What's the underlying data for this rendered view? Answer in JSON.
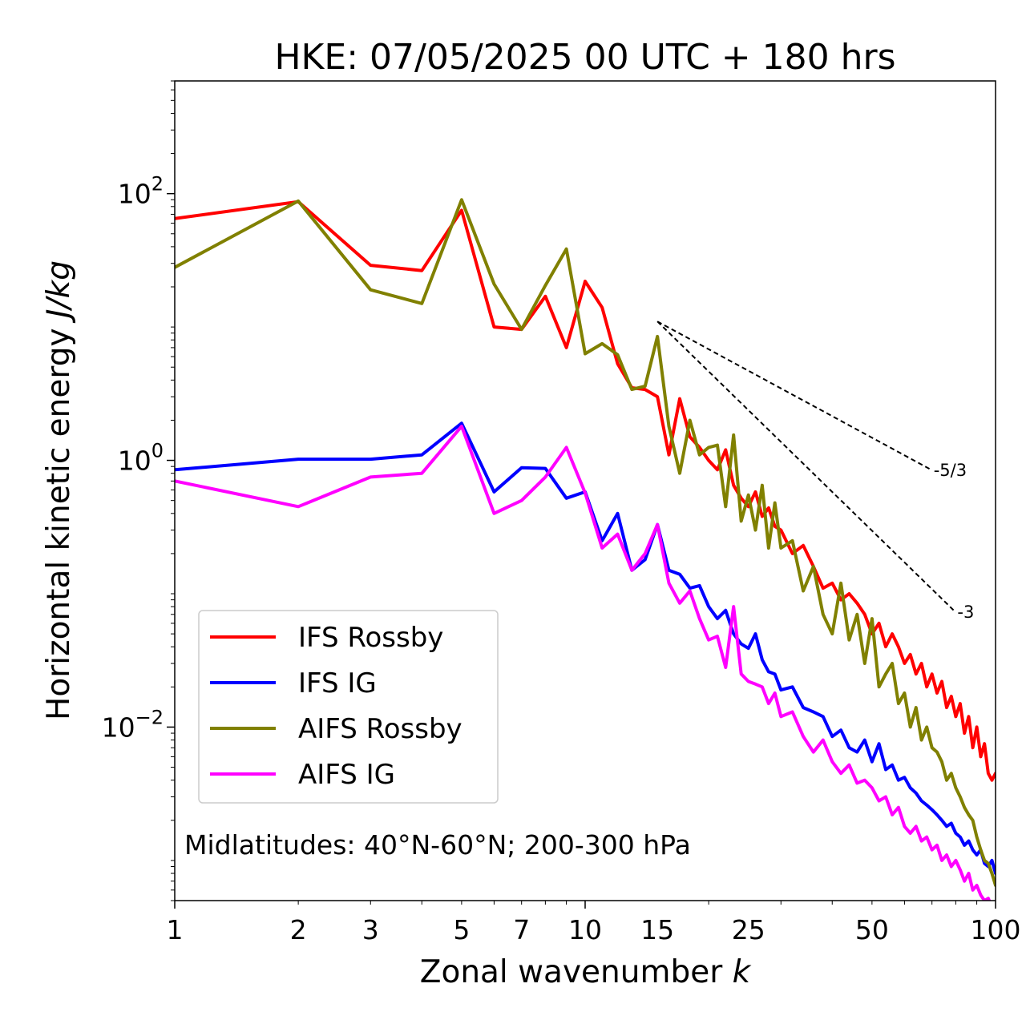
{
  "chart_data": {
    "type": "line",
    "title": "HKE: 07/05/2025 00 UTC + 180 hrs",
    "xlabel": "Zonal wavenumber",
    "xlabel_var": "k",
    "ylabel": "Horizontal kinetic energy",
    "ylabel_unit": "J/kg",
    "xscale": "log",
    "yscale": "log",
    "xlim": [
      1,
      100
    ],
    "ylim": [
      0.0005,
      700
    ],
    "xticks": [
      1,
      2,
      3,
      5,
      7,
      10,
      15,
      25,
      50,
      100
    ],
    "xtick_labels": [
      "1",
      "2",
      "3",
      "5",
      "7",
      "10",
      "15",
      "25",
      "50",
      "100"
    ],
    "yticks": [
      {
        "value": 100,
        "base": "10",
        "exp": "2"
      },
      {
        "value": 1,
        "base": "10",
        "exp": "0"
      },
      {
        "value": 0.01,
        "base": "10",
        "exp": "−2"
      }
    ],
    "grid": false,
    "legend_position": "lower-left",
    "annotation": "Midlatitudes: 40°N-60°N; 200-300 hPa",
    "reference_slopes": [
      {
        "label": "-5/3",
        "slope": -1.6667,
        "x_start": 15,
        "x_end": 70,
        "y_start": 11
      },
      {
        "label": "-3",
        "slope": -3,
        "x_start": 15,
        "x_end": 80,
        "y_start": 11
      }
    ],
    "series": [
      {
        "name": "IFS Rossby",
        "color": "#ff0000",
        "x": [
          1,
          2,
          3,
          4,
          5,
          6,
          7,
          8,
          9,
          10,
          11,
          12,
          13,
          14,
          15,
          16,
          17,
          18,
          19,
          20,
          21,
          22,
          23,
          24,
          25,
          26,
          27,
          28,
          29,
          30,
          32,
          34,
          36,
          38,
          40,
          42,
          44,
          46,
          48,
          50,
          52,
          54,
          56,
          58,
          60,
          62,
          64,
          66,
          68,
          70,
          72,
          74,
          76,
          78,
          80,
          82,
          84,
          86,
          88,
          90,
          92,
          94,
          96,
          98,
          100
        ],
        "values": [
          65,
          87,
          29,
          26.5,
          75,
          10,
          9.6,
          17,
          7,
          22,
          14,
          5.3,
          3.5,
          3.4,
          3.0,
          1.1,
          2.9,
          1.5,
          1.25,
          1.0,
          0.85,
          1.2,
          0.65,
          0.52,
          0.45,
          0.58,
          0.38,
          0.44,
          0.32,
          0.3,
          0.2,
          0.23,
          0.16,
          0.11,
          0.12,
          0.09,
          0.1,
          0.085,
          0.07,
          0.05,
          0.06,
          0.04,
          0.05,
          0.04,
          0.03,
          0.035,
          0.025,
          0.03,
          0.02,
          0.025,
          0.018,
          0.022,
          0.014,
          0.017,
          0.012,
          0.015,
          0.009,
          0.012,
          0.007,
          0.01,
          0.006,
          0.0075,
          0.0045,
          0.004,
          0.0045
        ]
      },
      {
        "name": "IFS IG",
        "color": "#0000ff",
        "x": [
          1,
          2,
          3,
          4,
          5,
          6,
          7,
          8,
          9,
          10,
          11,
          12,
          13,
          14,
          15,
          16,
          17,
          18,
          19,
          20,
          21,
          22,
          23,
          24,
          25,
          26,
          27,
          28,
          29,
          30,
          32,
          34,
          36,
          38,
          40,
          42,
          44,
          46,
          48,
          50,
          52,
          54,
          56,
          58,
          60,
          62,
          64,
          66,
          68,
          70,
          72,
          74,
          76,
          78,
          80,
          82,
          84,
          86,
          88,
          90,
          92,
          94,
          96,
          98,
          100
        ],
        "values": [
          0.85,
          1.02,
          1.02,
          1.1,
          1.9,
          0.58,
          0.88,
          0.87,
          0.52,
          0.58,
          0.25,
          0.4,
          0.15,
          0.18,
          0.33,
          0.15,
          0.14,
          0.11,
          0.115,
          0.08,
          0.065,
          0.075,
          0.05,
          0.042,
          0.039,
          0.05,
          0.032,
          0.026,
          0.025,
          0.019,
          0.02,
          0.014,
          0.013,
          0.012,
          0.0085,
          0.0095,
          0.007,
          0.0065,
          0.008,
          0.0055,
          0.0075,
          0.0048,
          0.0052,
          0.004,
          0.0042,
          0.0035,
          0.0032,
          0.0028,
          0.0026,
          0.0024,
          0.0022,
          0.002,
          0.0018,
          0.0019,
          0.0016,
          0.0015,
          0.0013,
          0.0014,
          0.0012,
          0.0011,
          0.0012,
          0.00095,
          0.0009,
          0.001,
          0.0008
        ]
      },
      {
        "name": "AIFS Rossby",
        "color": "#808000",
        "x": [
          1,
          2,
          3,
          4,
          5,
          6,
          7,
          8,
          9,
          10,
          11,
          12,
          13,
          14,
          15,
          16,
          17,
          18,
          19,
          20,
          21,
          22,
          23,
          24,
          25,
          26,
          27,
          28,
          29,
          30,
          32,
          34,
          36,
          38,
          40,
          42,
          44,
          46,
          48,
          50,
          52,
          54,
          56,
          58,
          60,
          62,
          64,
          66,
          68,
          70,
          72,
          74,
          76,
          78,
          80,
          82,
          84,
          86,
          88,
          90,
          92,
          94,
          96,
          98,
          100
        ],
        "values": [
          28,
          88,
          19,
          15,
          90,
          21,
          9.6,
          20.5,
          38.5,
          6.3,
          7.5,
          6.2,
          3.4,
          3.6,
          8.5,
          1.8,
          0.8,
          2.0,
          1.1,
          1.25,
          1.3,
          0.45,
          1.55,
          0.35,
          0.55,
          0.3,
          0.65,
          0.22,
          0.48,
          0.22,
          0.25,
          0.105,
          0.16,
          0.07,
          0.05,
          0.12,
          0.045,
          0.07,
          0.03,
          0.065,
          0.02,
          0.025,
          0.03,
          0.015,
          0.018,
          0.01,
          0.014,
          0.008,
          0.01,
          0.007,
          0.0065,
          0.0055,
          0.004,
          0.0045,
          0.0035,
          0.003,
          0.0025,
          0.0022,
          0.002,
          0.0015,
          0.0012,
          0.001,
          0.00095,
          0.0008,
          0.00065
        ]
      },
      {
        "name": "AIFS IG",
        "color": "#ff00ff",
        "x": [
          1,
          2,
          3,
          4,
          5,
          6,
          7,
          8,
          9,
          10,
          11,
          12,
          13,
          14,
          15,
          16,
          17,
          18,
          19,
          20,
          21,
          22,
          23,
          24,
          25,
          26,
          27,
          28,
          29,
          30,
          32,
          34,
          36,
          38,
          40,
          42,
          44,
          46,
          48,
          50,
          52,
          54,
          56,
          58,
          60,
          62,
          64,
          66,
          68,
          70,
          72,
          74,
          76,
          78,
          80,
          82,
          84,
          86,
          88,
          90,
          92,
          94,
          96,
          98,
          100
        ],
        "values": [
          0.7,
          0.45,
          0.75,
          0.8,
          1.8,
          0.4,
          0.5,
          0.75,
          1.25,
          0.57,
          0.22,
          0.28,
          0.15,
          0.2,
          0.33,
          0.12,
          0.085,
          0.105,
          0.065,
          0.045,
          0.048,
          0.028,
          0.08,
          0.025,
          0.022,
          0.021,
          0.02,
          0.015,
          0.018,
          0.012,
          0.013,
          0.0085,
          0.0065,
          0.008,
          0.0055,
          0.0045,
          0.0052,
          0.0038,
          0.004,
          0.0035,
          0.0028,
          0.003,
          0.0022,
          0.0025,
          0.0018,
          0.0016,
          0.0018,
          0.0014,
          0.0015,
          0.0012,
          0.0013,
          0.001,
          0.0011,
          0.0009,
          0.001,
          0.00085,
          0.0007,
          0.0008,
          0.0006,
          0.00065,
          0.00055,
          0.0005,
          0.00052,
          0.00045,
          0.0004
        ]
      }
    ]
  }
}
